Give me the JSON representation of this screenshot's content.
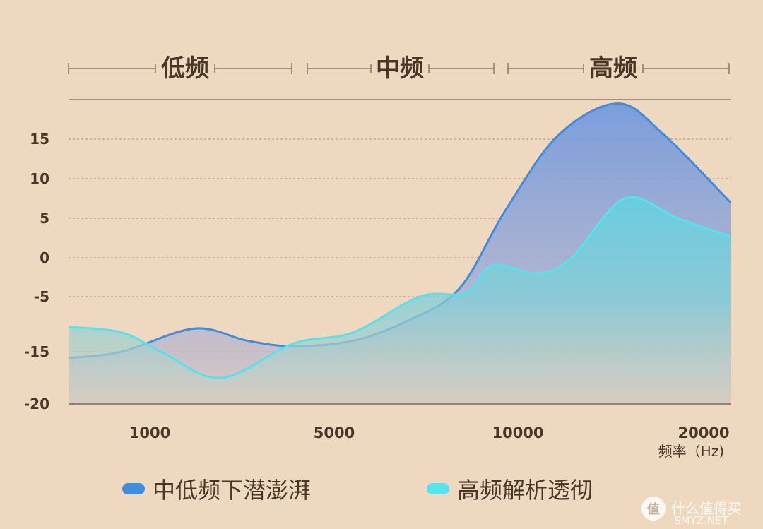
{
  "chart_data": {
    "type": "area",
    "bands": [
      "低频",
      "中频",
      "高频"
    ],
    "x_tick_labels": [
      "1000",
      "5000",
      "10000",
      "20000"
    ],
    "xlabel": "频率（Hz)",
    "ylabel": "",
    "y_ticks": [
      15,
      10,
      5,
      0,
      -5,
      -15,
      -20
    ],
    "ylim": [
      -20,
      19
    ],
    "grid": true,
    "legend_position": "bottom",
    "series": [
      {
        "name": "中低频下潜澎湃",
        "color": "#3d8de0",
        "x": [
          0,
          0.08,
          0.19,
          0.27,
          0.34,
          0.43,
          0.51,
          0.59,
          0.66,
          0.74,
          0.83,
          0.9,
          1.0
        ],
        "values": [
          -15.6,
          -15,
          -10.8,
          -13,
          -14,
          -13,
          -9.5,
          -4,
          6,
          15.5,
          19.5,
          15.5,
          7
        ]
      },
      {
        "name": "高频解析透彻",
        "color": "#52e4ef",
        "x": [
          0,
          0.08,
          0.14,
          0.23,
          0.34,
          0.43,
          0.53,
          0.6,
          0.64,
          0.71,
          0.76,
          0.84,
          0.92,
          1.0
        ],
        "values": [
          -10.5,
          -11.5,
          -15,
          -17.5,
          -13.5,
          -11.5,
          -5,
          -4.5,
          -1,
          -2,
          0,
          7.5,
          5,
          2.7
        ]
      }
    ]
  },
  "watermark": {
    "icon": "zhi-icon",
    "text": "什么值得买",
    "site": "SMYZ.NET"
  },
  "colors": {
    "background": "#eed8c0",
    "text": "#4a3526"
  }
}
